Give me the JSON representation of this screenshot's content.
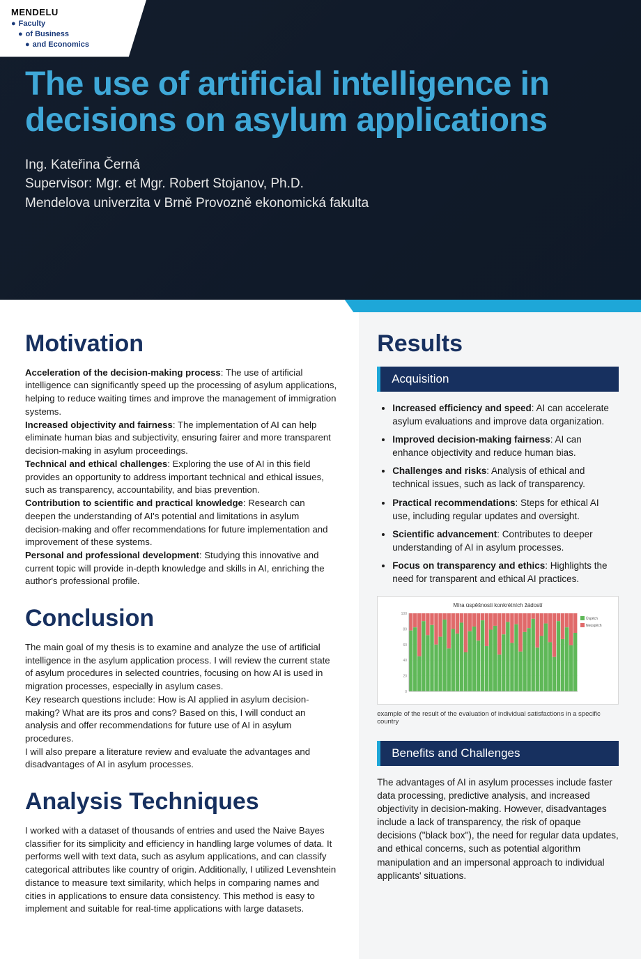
{
  "header": {
    "university": "MENDELU",
    "faculty_lines": [
      "Faculty",
      "of Business",
      "and Economics"
    ],
    "title": "The use of artificial intelligence in decisions on asylum applications",
    "author": "Ing. Kateřina Černá",
    "supervisor": "Supervisor: Mgr. et Mgr. Robert Stojanov, Ph.D.",
    "affiliation": "Mendelova univerzita v Brně Provozně ekonomická fakulta"
  },
  "colors": {
    "accent": "#1ea7d8",
    "title_blue": "#3fa8d8",
    "dark_navy": "#17305f",
    "body": "#1a1a1a",
    "right_bg": "#f4f5f6",
    "chart_green": "#5fb858",
    "chart_red": "#e06a6a"
  },
  "motivation": {
    "heading": "Motivation",
    "items": [
      {
        "label": "Acceleration of the decision-making process",
        "text": ": The use of artificial intelligence can significantly speed up the processing of asylum applications, helping to reduce waiting times and improve the management of immigration systems."
      },
      {
        "label": "Increased objectivity and fairness",
        "text": ": The implementation of AI can help eliminate human bias and subjectivity, ensuring fairer and more transparent decision-making in asylum proceedings."
      },
      {
        "label": "Technical and ethical challenges",
        "text": ": Exploring the use of AI in this field provides an opportunity to address important technical and ethical issues, such as transparency, accountability, and bias prevention."
      },
      {
        "label": "Contribution to scientific and practical knowledge",
        "text": ": Research can deepen the understanding of AI's potential and limitations in asylum decision-making and offer recommendations for future implementation and improvement of these systems."
      },
      {
        "label": "Personal and professional development",
        "text": ": Studying this innovative and current topic will provide in-depth knowledge and skills in AI, enriching the author's professional profile."
      }
    ]
  },
  "conclusion": {
    "heading": "Conclusion",
    "paragraphs": [
      "The main goal of my thesis is to examine and analyze the use of artificial intelligence in the asylum application process. I will review the current state of asylum procedures in selected countries, focusing on how AI is used in migration processes, especially in asylum cases.",
      "Key research questions include: How is AI applied in asylum decision-making? What are its pros and cons? Based on this, I will conduct an analysis and offer recommendations for future use of AI in asylum procedures.",
      "I will also prepare a literature review and evaluate the advantages and disadvantages of AI in asylum processes."
    ]
  },
  "analysis": {
    "heading": "Analysis Techniques",
    "text": "I worked with a dataset of thousands of entries and used the Naive Bayes classifier for its simplicity and efficiency in handling large volumes of data. It performs well with text data, such as asylum applications, and can classify categorical attributes like country of origin. Additionally, I utilized Levenshtein distance to measure text similarity, which helps in comparing names and cities in applications to ensure data consistency. This method is easy to implement and suitable for real-time applications with large datasets."
  },
  "results": {
    "heading": "Results",
    "acquisition_label": "Acquisition",
    "bullets": [
      {
        "label": "Increased efficiency and speed",
        "text": ": AI can accelerate asylum evaluations and improve data organization."
      },
      {
        "label": "Improved decision-making fairness",
        "text": ": AI can enhance objectivity and reduce human bias."
      },
      {
        "label": "Challenges and risks",
        "text": ": Analysis of ethical and technical issues, such as lack of transparency."
      },
      {
        "label": "Practical recommendations",
        "text": ": Steps for ethical AI use, including regular updates and oversight."
      },
      {
        "label": "Scientific advancement",
        "text": ": Contributes to deeper understanding of AI in asylum processes."
      },
      {
        "label": "Focus on transparency and ethics",
        "text": ": Highlights the need for transparent and ethical AI practices."
      }
    ],
    "chart": {
      "type": "stacked-bar",
      "title": "Míra úspěšnosti konkrétních žádostí",
      "legend": [
        "Úspěch",
        "Neúspěch"
      ],
      "ylim": [
        0,
        100
      ],
      "n_bars": 40,
      "green_heights": [
        78,
        82,
        45,
        90,
        72,
        85,
        60,
        70,
        92,
        55,
        80,
        74,
        88,
        50,
        77,
        83,
        65,
        91,
        58,
        79,
        84,
        47,
        73,
        89,
        62,
        86,
        51,
        76,
        81,
        93,
        56,
        71,
        87,
        63,
        44,
        90,
        67,
        82,
        59,
        75
      ],
      "bar_color_top": "#e06a6a",
      "bar_color_bottom": "#5fb858",
      "background": "#ffffff",
      "axis_color": "#a8a8a8",
      "caption": "example of the result of the evaluation of individual satisfactions in a specific country"
    },
    "benefits_label": "Benefits and Challenges",
    "benefits_text": "The advantages of AI in asylum processes include faster data processing, predictive analysis, and increased objectivity in decision-making. However, disadvantages include a lack of transparency, the risk of opaque decisions (\"black box\"), the need for regular data updates, and ethical concerns, such as potential algorithm manipulation and an impersonal approach to individual applicants' situations."
  }
}
